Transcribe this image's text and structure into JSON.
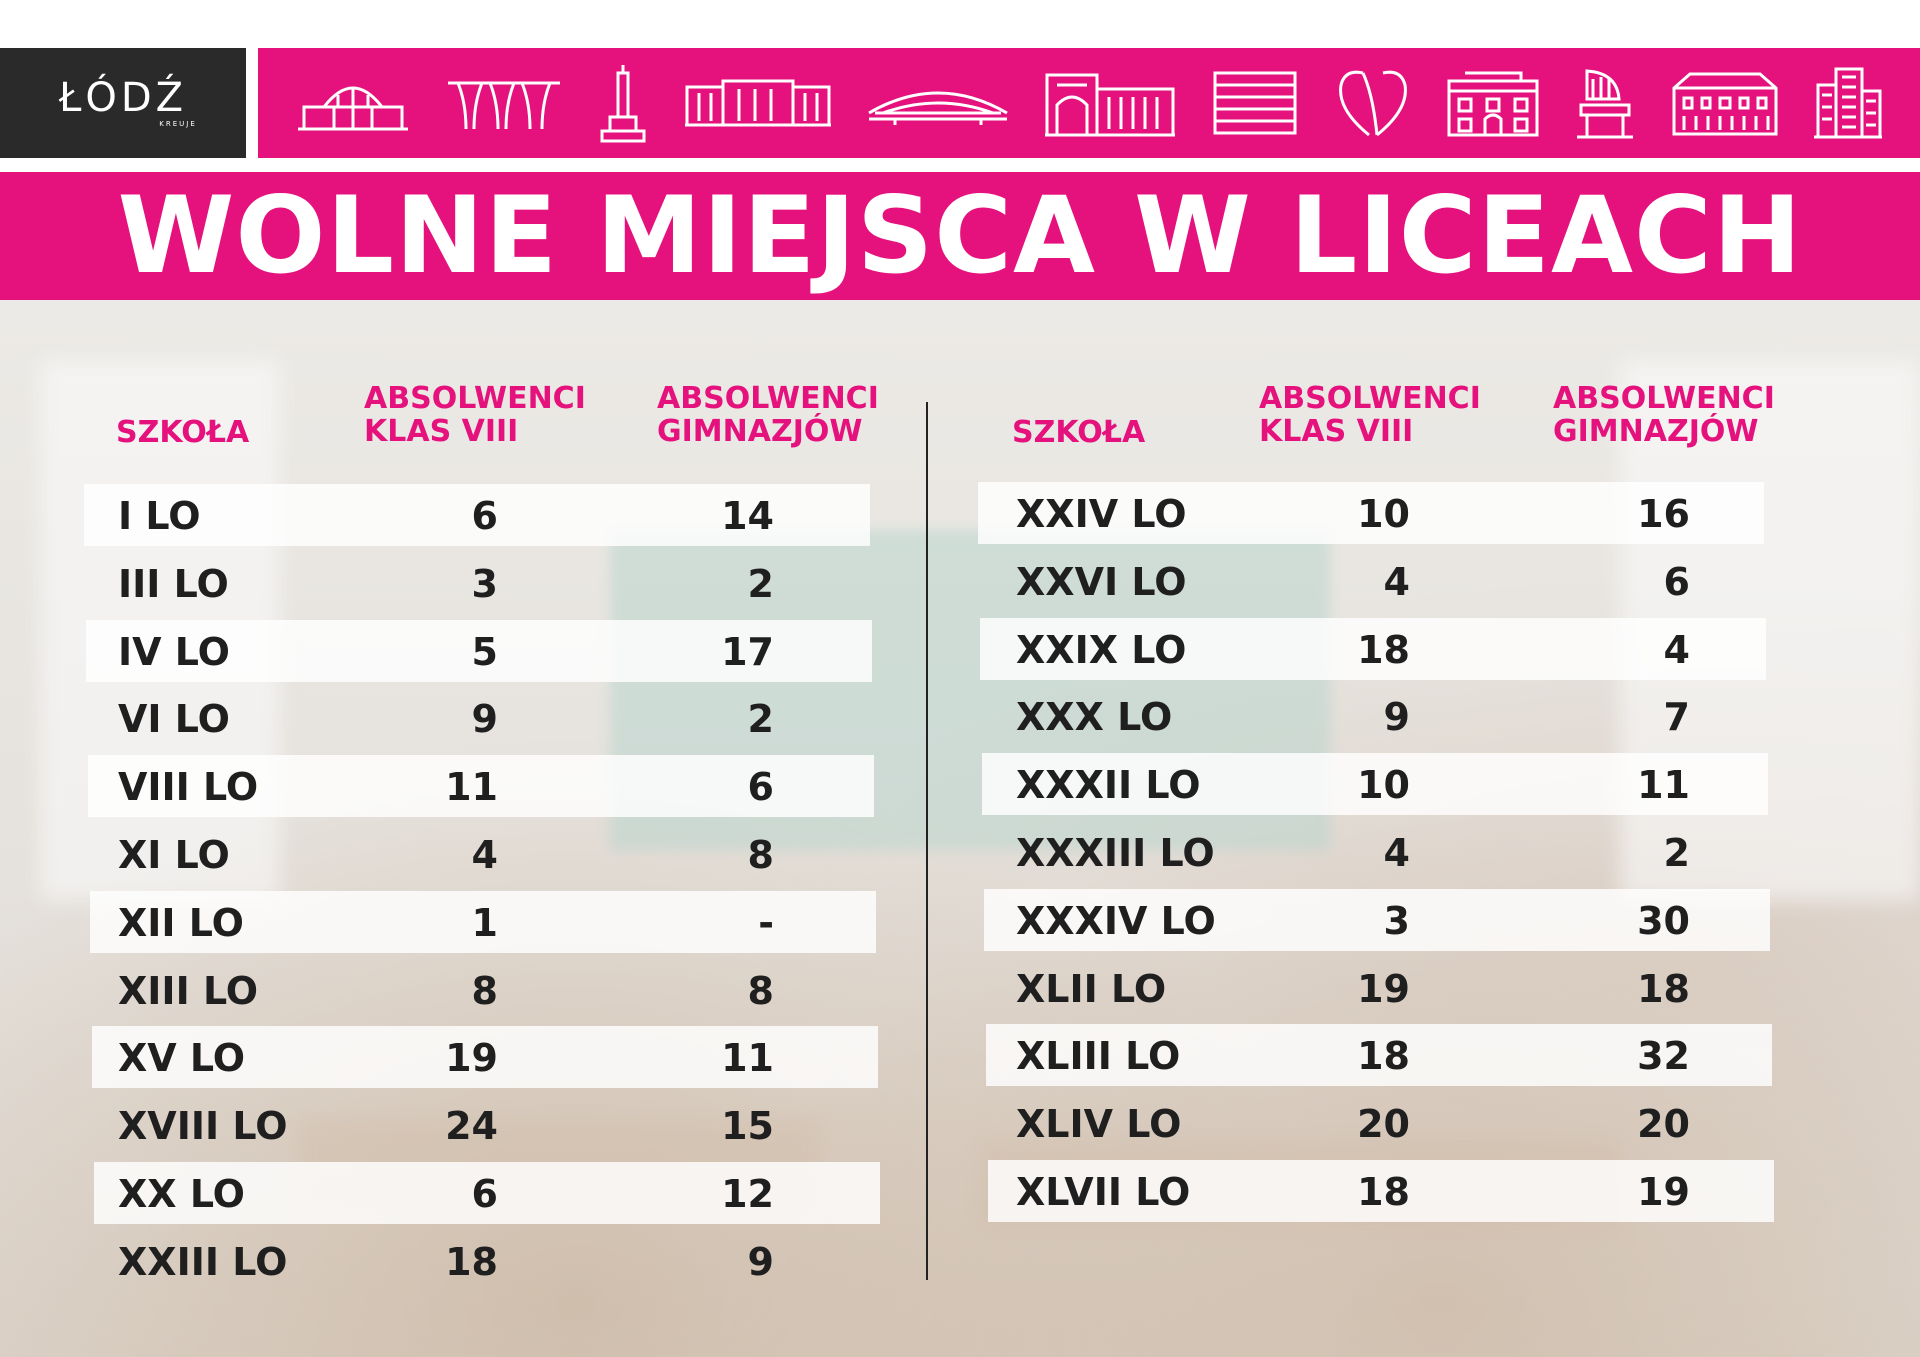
{
  "header": {
    "logo_text": "ŁÓDŹ",
    "logo_subtext": "KREUJE",
    "icons": [
      "railway-station-icon",
      "arches-icon",
      "monument-icon",
      "factory-icon",
      "arena-icon",
      "gate-building-icon",
      "stacked-building-icon",
      "heart-sculpture-icon",
      "palace-icon",
      "piano-monument-icon",
      "manor-icon",
      "tower-block-icon"
    ],
    "accent_color": "#e5127d",
    "title": "WOLNE MIEJSCA W LICEACH"
  },
  "columns": {
    "school": "SZKOŁA",
    "grade8_line1": "ABSOLWENCI",
    "grade8_line2": "KLAS VIII",
    "gym_line1": "ABSOLWENCI",
    "gym_line2": "GIMNAZJÓW"
  },
  "left_table": [
    {
      "school": "I LO",
      "grade8": "6",
      "gym": "14"
    },
    {
      "school": "III LO",
      "grade8": "3",
      "gym": "2"
    },
    {
      "school": "IV LO",
      "grade8": "5",
      "gym": "17"
    },
    {
      "school": "VI LO",
      "grade8": "9",
      "gym": "2"
    },
    {
      "school": "VIII LO",
      "grade8": "11",
      "gym": "6"
    },
    {
      "school": "XI LO",
      "grade8": "4",
      "gym": "8"
    },
    {
      "school": "XII LO",
      "grade8": "1",
      "gym": "-"
    },
    {
      "school": "XIII LO",
      "grade8": "8",
      "gym": "8"
    },
    {
      "school": "XV LO",
      "grade8": "19",
      "gym": "11"
    },
    {
      "school": "XVIII LO",
      "grade8": "24",
      "gym": "15"
    },
    {
      "school": "XX LO",
      "grade8": "6",
      "gym": "12"
    },
    {
      "school": "XXIII LO",
      "grade8": "18",
      "gym": "9"
    }
  ],
  "right_table": [
    {
      "school": "XXIV LO",
      "grade8": "10",
      "gym": "16"
    },
    {
      "school": "XXVI LO",
      "grade8": "4",
      "gym": "6"
    },
    {
      "school": "XXIX LO",
      "grade8": "18",
      "gym": "4"
    },
    {
      "school": "XXX LO",
      "grade8": "9",
      "gym": "7"
    },
    {
      "school": "XXXII LO",
      "grade8": "10",
      "gym": "11"
    },
    {
      "school": "XXXIII LO",
      "grade8": "4",
      "gym": "2"
    },
    {
      "school": "XXXIV LO",
      "grade8": "3",
      "gym": "30"
    },
    {
      "school": "XLII LO",
      "grade8": "19",
      "gym": "18"
    },
    {
      "school": "XLIII LO",
      "grade8": "18",
      "gym": "32"
    },
    {
      "school": "XLIV LO",
      "grade8": "20",
      "gym": "20"
    },
    {
      "school": "XLVII LO",
      "grade8": "18",
      "gym": "19"
    }
  ]
}
